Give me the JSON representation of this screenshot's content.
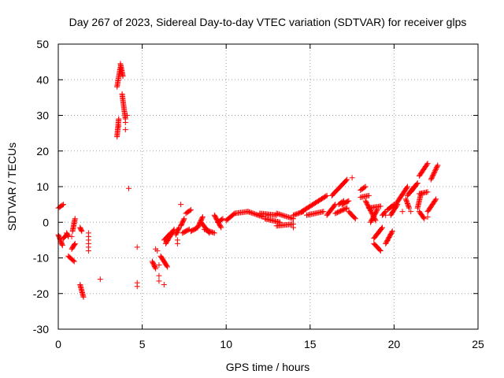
{
  "chart_data": {
    "type": "scatter",
    "title": "Day 267 of 2023, Sidereal Day-to-day VTEC variation (SDTVAR) for receiver glps",
    "xlabel": "GPS time / hours",
    "ylabel": "SDTVAR / TECUs",
    "xlim": [
      0,
      25
    ],
    "ylim": [
      -30,
      50
    ],
    "xticks": [
      0,
      5,
      10,
      15,
      20,
      25
    ],
    "yticks": [
      -30,
      -20,
      -10,
      0,
      10,
      20,
      30,
      40,
      50
    ],
    "grid": true,
    "marker": "+",
    "color": "#ff0000",
    "segments": [
      {
        "x0": 0.0,
        "y0": 4.0,
        "x1": 0.3,
        "y1": 5.0
      },
      {
        "x0": 0.0,
        "y0": -3.5,
        "x1": 0.25,
        "y1": -6.5
      },
      {
        "x0": 0.3,
        "y0": -4.5,
        "x1": 0.5,
        "y1": -3.5
      },
      {
        "x0": 0.5,
        "y0": -3.0,
        "x1": 0.6,
        "y1": -4.0
      },
      {
        "x0": 0.6,
        "y0": -9.5,
        "x1": 0.95,
        "y1": -11.0
      },
      {
        "x0": 0.8,
        "y0": -7.5,
        "x1": 1.0,
        "y1": -6.0
      },
      {
        "x0": 0.85,
        "y0": -2.5,
        "x1": 1.0,
        "y1": 1.0
      },
      {
        "x0": 1.3,
        "y0": -1.5,
        "x1": 1.4,
        "y1": -2.5
      },
      {
        "x0": 1.3,
        "y0": -17.5,
        "x1": 1.5,
        "y1": -21.0
      },
      {
        "x0": 3.5,
        "y0": 24.0,
        "x1": 3.6,
        "y1": 29.0
      },
      {
        "x0": 3.5,
        "y0": 38.0,
        "x1": 3.7,
        "y1": 43.5
      },
      {
        "x0": 3.7,
        "y0": 44.5,
        "x1": 3.85,
        "y1": 41.0
      },
      {
        "x0": 3.8,
        "y0": 36.0,
        "x1": 4.0,
        "y1": 29.0
      },
      {
        "x0": 5.6,
        "y0": -11.0,
        "x1": 5.8,
        "y1": -13.0
      },
      {
        "x0": 6.1,
        "y0": -9.5,
        "x1": 6.5,
        "y1": -12.5
      },
      {
        "x0": 6.3,
        "y0": -5.0,
        "x1": 6.7,
        "y1": -3.0
      },
      {
        "x0": 6.4,
        "y0": -6.0,
        "x1": 6.9,
        "y1": -2.0
      },
      {
        "x0": 7.0,
        "y0": -3.5,
        "x1": 7.2,
        "y1": -1.5
      },
      {
        "x0": 7.3,
        "y0": -1.0,
        "x1": 7.5,
        "y1": 1.0
      },
      {
        "x0": 7.6,
        "y0": 2.5,
        "x1": 7.9,
        "y1": 3.5
      },
      {
        "x0": 7.4,
        "y0": -3.0,
        "x1": 7.8,
        "y1": -2.0
      },
      {
        "x0": 7.9,
        "y0": -2.5,
        "x1": 8.3,
        "y1": -1.5
      },
      {
        "x0": 8.3,
        "y0": -1.5,
        "x1": 8.6,
        "y1": 1.5
      },
      {
        "x0": 8.5,
        "y0": 0.0,
        "x1": 9.0,
        "y1": -3.0
      },
      {
        "x0": 8.7,
        "y0": -2.0,
        "x1": 9.3,
        "y1": -3.0
      },
      {
        "x0": 9.3,
        "y0": 2.0,
        "x1": 9.7,
        "y1": -1.5
      },
      {
        "x0": 9.5,
        "y0": 0.0,
        "x1": 9.8,
        "y1": 1.0
      },
      {
        "x0": 10.0,
        "y0": 0.5,
        "x1": 10.5,
        "y1": 2.5
      },
      {
        "x0": 10.5,
        "y0": 2.5,
        "x1": 11.3,
        "y1": 3.0
      },
      {
        "x0": 11.3,
        "y0": 3.0,
        "x1": 12.2,
        "y1": 1.5
      },
      {
        "x0": 12.0,
        "y0": 2.5,
        "x1": 13.0,
        "y1": 2.0
      },
      {
        "x0": 12.3,
        "y0": 1.0,
        "x1": 13.2,
        "y1": 0.0
      },
      {
        "x0": 13.0,
        "y0": 2.5,
        "x1": 14.0,
        "y1": 1.0
      },
      {
        "x0": 13.0,
        "y0": -1.0,
        "x1": 14.0,
        "y1": -0.5
      },
      {
        "x0": 14.0,
        "y0": 2.0,
        "x1": 14.6,
        "y1": 3.0
      },
      {
        "x0": 14.5,
        "y0": 3.0,
        "x1": 15.5,
        "y1": 6.0
      },
      {
        "x0": 14.8,
        "y0": 2.0,
        "x1": 15.8,
        "y1": 3.0
      },
      {
        "x0": 15.5,
        "y0": 6.0,
        "x1": 16.0,
        "y1": 7.5
      },
      {
        "x0": 16.0,
        "y0": 2.0,
        "x1": 16.5,
        "y1": 5.0
      },
      {
        "x0": 16.3,
        "y0": 7.5,
        "x1": 17.0,
        "y1": 11.0
      },
      {
        "x0": 16.7,
        "y0": 5.0,
        "x1": 17.0,
        "y1": 6.0
      },
      {
        "x0": 16.5,
        "y0": 2.5,
        "x1": 17.2,
        "y1": 4.0
      },
      {
        "x0": 17.0,
        "y0": 11.0,
        "x1": 17.2,
        "y1": 12.0
      },
      {
        "x0": 16.9,
        "y0": 5.0,
        "x1": 17.3,
        "y1": 6.0
      },
      {
        "x0": 17.3,
        "y0": 3.0,
        "x1": 17.7,
        "y1": 1.0
      },
      {
        "x0": 18.0,
        "y0": 9.0,
        "x1": 18.3,
        "y1": 10.0
      },
      {
        "x0": 18.0,
        "y0": 7.0,
        "x1": 18.5,
        "y1": 7.5
      },
      {
        "x0": 18.3,
        "y0": 6.0,
        "x1": 18.9,
        "y1": 0.5
      },
      {
        "x0": 18.5,
        "y0": 4.0,
        "x1": 19.2,
        "y1": 4.5
      },
      {
        "x0": 18.6,
        "y0": 0.0,
        "x1": 19.0,
        "y1": 3.5
      },
      {
        "x0": 18.8,
        "y0": -4.5,
        "x1": 19.3,
        "y1": -1.5
      },
      {
        "x0": 18.8,
        "y0": -6.0,
        "x1": 19.2,
        "y1": -8.0
      },
      {
        "x0": 19.3,
        "y0": 2.0,
        "x1": 19.5,
        "y1": 3.0
      },
      {
        "x0": 19.5,
        "y0": -6.0,
        "x1": 19.9,
        "y1": -2.5
      },
      {
        "x0": 19.6,
        "y0": 3.5,
        "x1": 20.0,
        "y1": 5.0
      },
      {
        "x0": 19.8,
        "y0": 2.0,
        "x1": 20.2,
        "y1": 5.0
      },
      {
        "x0": 20.1,
        "y0": 5.0,
        "x1": 20.8,
        "y1": 10.0
      },
      {
        "x0": 20.7,
        "y0": 6.5,
        "x1": 20.9,
        "y1": 4.0
      },
      {
        "x0": 20.8,
        "y0": 7.5,
        "x1": 21.2,
        "y1": 10.0
      },
      {
        "x0": 21.0,
        "y0": 8.5,
        "x1": 21.4,
        "y1": 11.0
      },
      {
        "x0": 21.4,
        "y0": 4.0,
        "x1": 21.6,
        "y1": 8.0
      },
      {
        "x0": 21.5,
        "y0": 3.0,
        "x1": 21.8,
        "y1": 1.0
      },
      {
        "x0": 21.5,
        "y0": 13.0,
        "x1": 22.0,
        "y1": 16.5
      },
      {
        "x0": 21.5,
        "y0": 8.0,
        "x1": 22.0,
        "y1": 8.5
      },
      {
        "x0": 22.0,
        "y0": 3.0,
        "x1": 22.5,
        "y1": 6.5
      },
      {
        "x0": 22.2,
        "y0": 12.0,
        "x1": 22.6,
        "y1": 16.0
      }
    ],
    "points": [
      [
        0.2,
        -6.0
      ],
      [
        0.8,
        -4.0
      ],
      [
        1.8,
        -3.0
      ],
      [
        1.8,
        -4.0
      ],
      [
        1.8,
        -5.0
      ],
      [
        1.8,
        -6.0
      ],
      [
        1.8,
        -7.0
      ],
      [
        1.8,
        -8.0
      ],
      [
        2.5,
        -16.0
      ],
      [
        4.2,
        9.5
      ],
      [
        4.1,
        30.0
      ],
      [
        4.0,
        28.0
      ],
      [
        4.0,
        26.0
      ],
      [
        3.6,
        27.0
      ],
      [
        4.7,
        -7.0
      ],
      [
        4.7,
        -17.0
      ],
      [
        4.7,
        -18.0
      ],
      [
        5.9,
        -8.0
      ],
      [
        6.0,
        -15.0
      ],
      [
        6.0,
        -16.5
      ],
      [
        6.3,
        -17.5
      ],
      [
        7.3,
        5.0
      ],
      [
        7.1,
        -5.0
      ],
      [
        7.1,
        -6.0
      ],
      [
        5.8,
        -7.5
      ],
      [
        6.0,
        -12.0
      ],
      [
        12.5,
        2.0
      ],
      [
        14.0,
        -1.5
      ],
      [
        17.5,
        12.5
      ],
      [
        19.5,
        2.0
      ],
      [
        20.5,
        3.0
      ],
      [
        21.0,
        3.0
      ],
      [
        22.0,
        1.5
      ]
    ]
  }
}
